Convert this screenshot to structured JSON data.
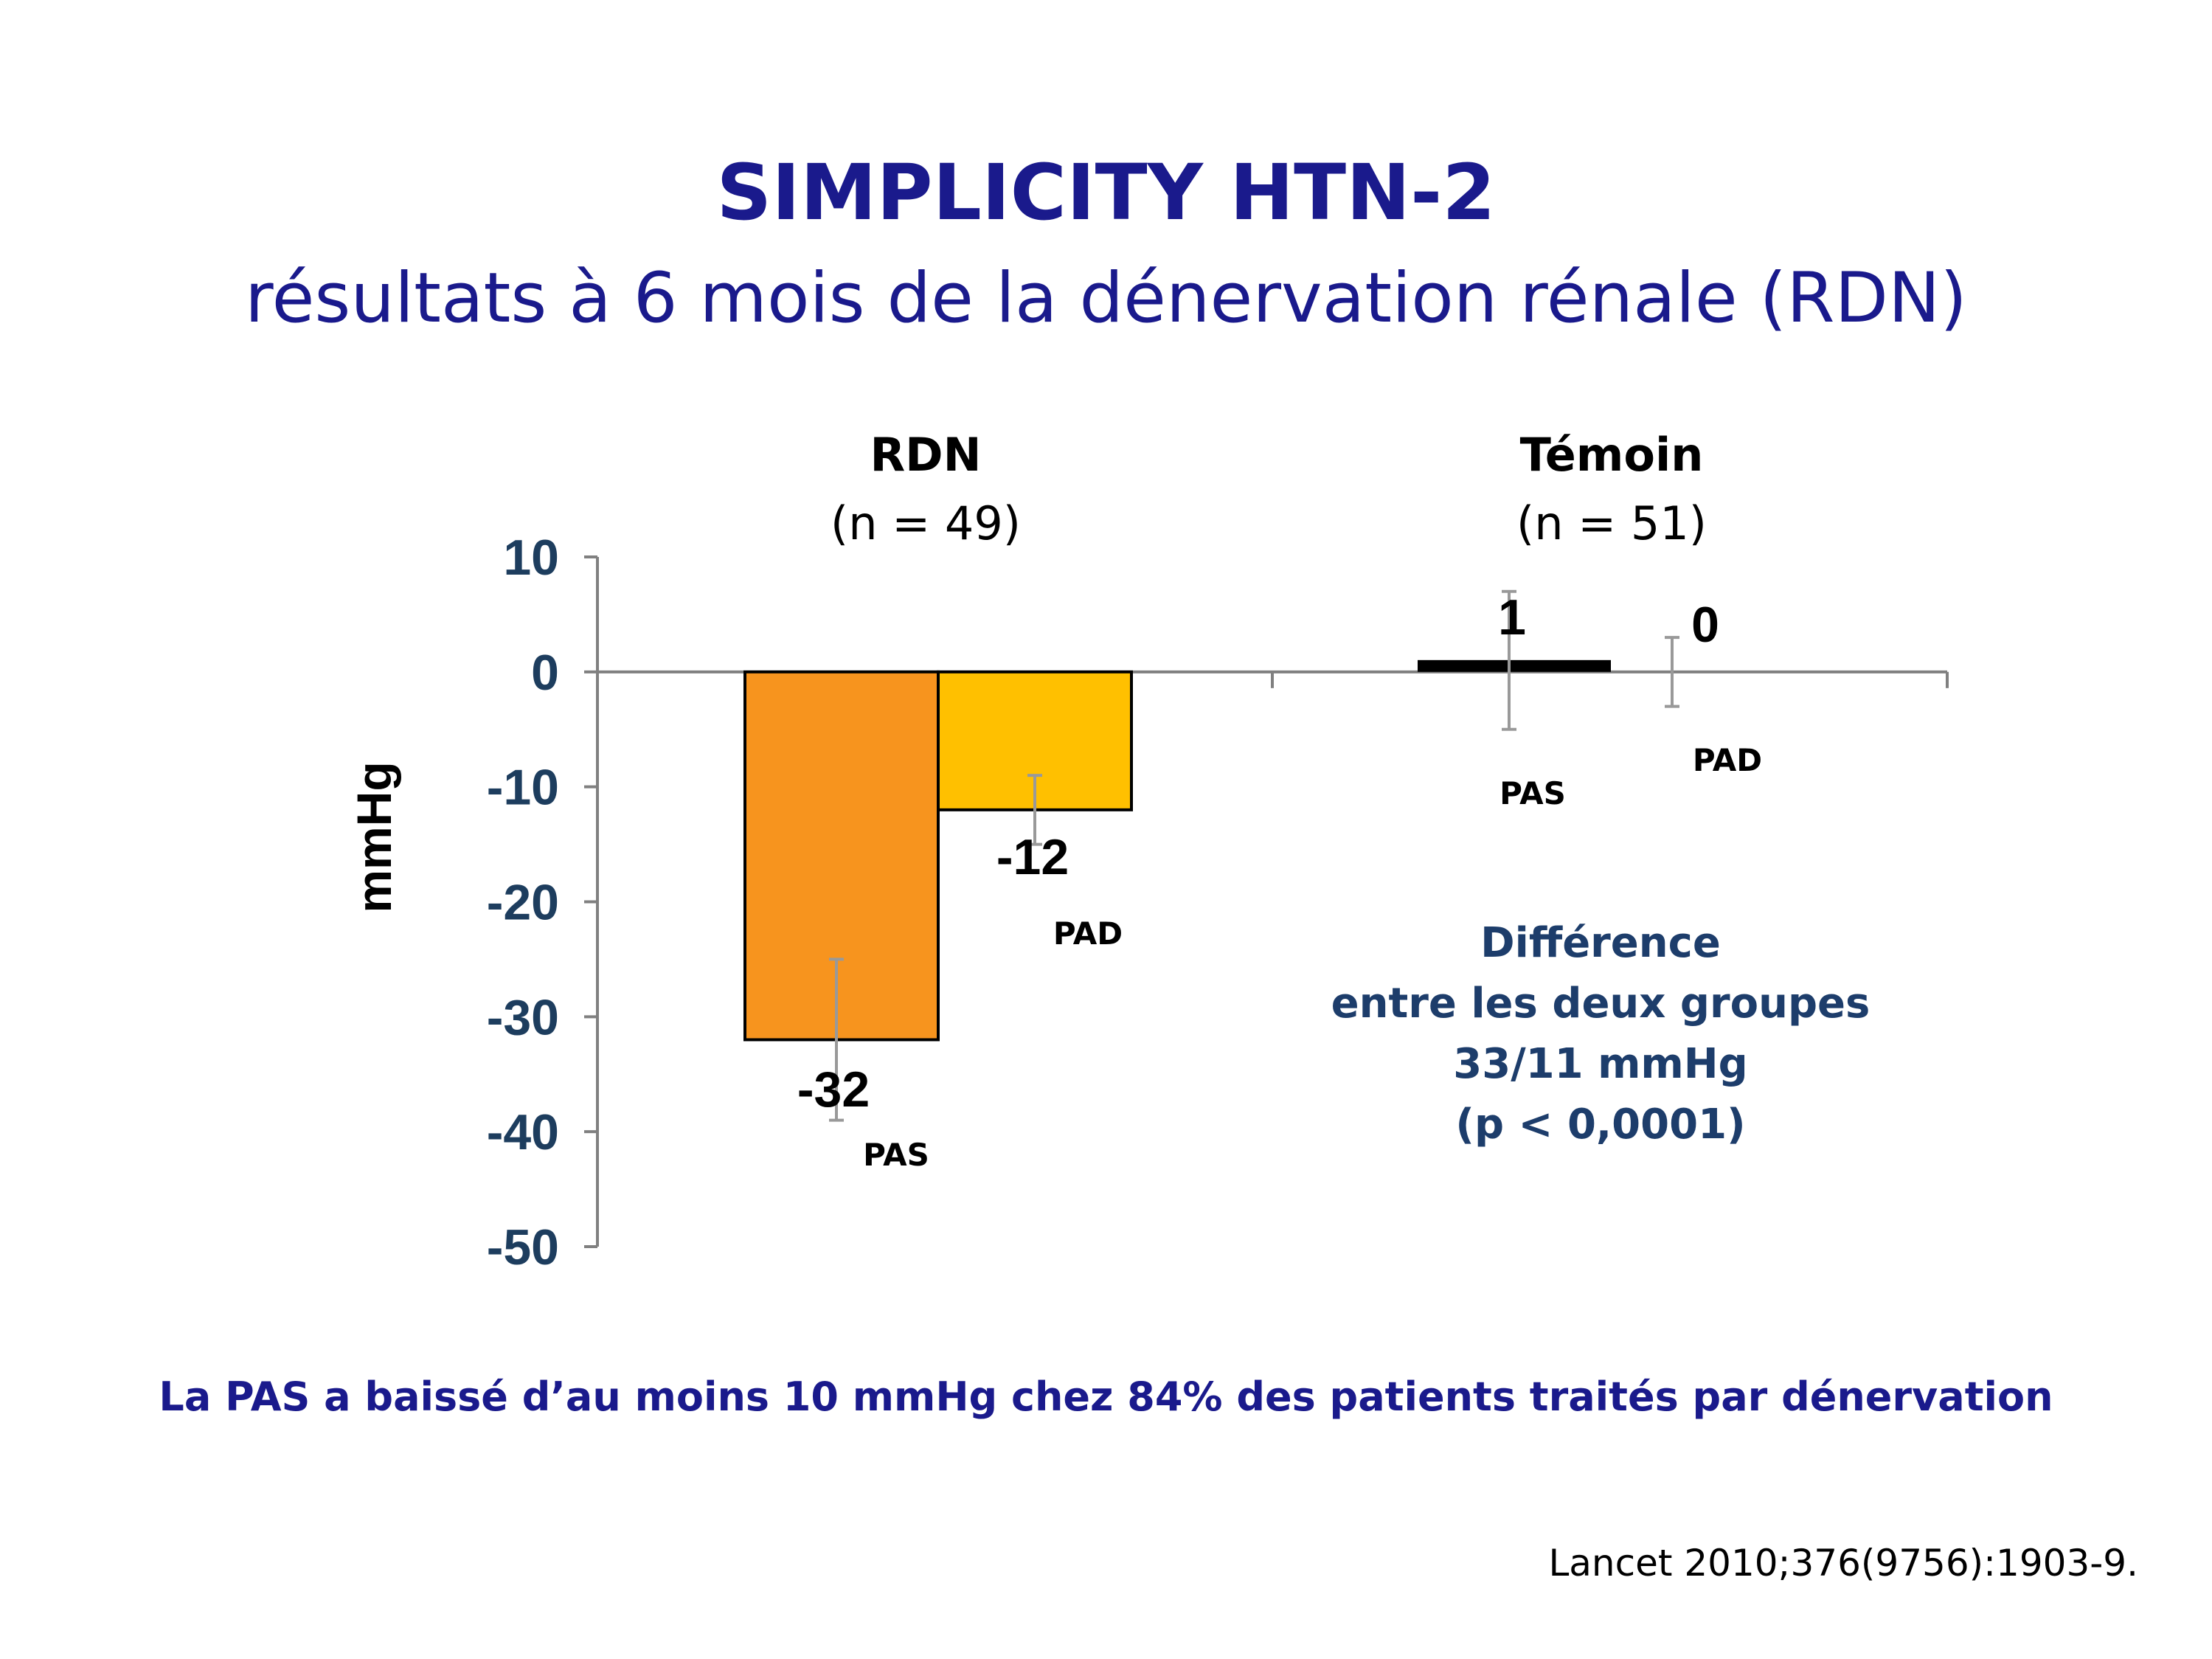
{
  "title": "SIMPLICITY HTN-2",
  "subtitle": "résultats à 6 mois de la dénervation rénale (RDN)",
  "groups": [
    {
      "name": "RDN",
      "n": "(n = 49)"
    },
    {
      "name": "Témoin",
      "n": "(n = 51)"
    }
  ],
  "difference": {
    "line1": "Différence",
    "line2": "entre les deux groupes",
    "line3": "33/11 mmHg",
    "line4": "(p < 0,0001)"
  },
  "footnote": "La PAS a baissé d’au moins 10 mmHg chez 84% des patients traités par dénervation",
  "reference": "Lancet 2010;376(9756):1903-9.",
  "chart_data": {
    "type": "bar",
    "ylabel": "mmHg",
    "ylim": [
      -50,
      10
    ],
    "yticks": [
      10,
      0,
      -10,
      -20,
      -30,
      -40,
      -50
    ],
    "grid": false,
    "bars": [
      {
        "group": "RDN",
        "measure": "PAS",
        "value": -32,
        "label": "-32",
        "err_low": -39,
        "err_high": -25,
        "color": "#f7941e"
      },
      {
        "group": "RDN",
        "measure": "PAD",
        "value": -12,
        "label": "-12",
        "err_low": -15,
        "err_high": -9,
        "color": "#ffc000"
      },
      {
        "group": "Témoin",
        "measure": "PAS",
        "value": 1,
        "label": "1",
        "err_low": -5,
        "err_high": 7,
        "color": "#000000"
      },
      {
        "group": "Témoin",
        "measure": "PAD",
        "value": 0,
        "label": "0",
        "err_low": -3,
        "err_high": 3,
        "color": "#000000"
      }
    ]
  }
}
